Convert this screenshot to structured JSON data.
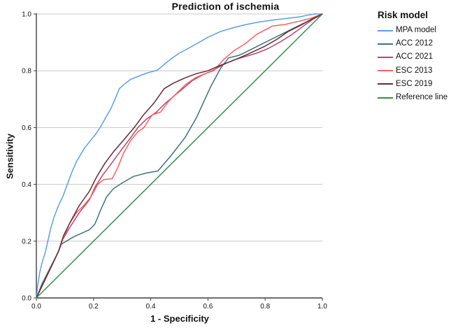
{
  "title": "Prediction of ischemia",
  "axes": {
    "x_label": "1 - Specificity",
    "y_label": "Sensitivity",
    "x_ticks": [
      "0.0",
      "0.2",
      "0.4",
      "0.6",
      "0.8",
      "1.0"
    ],
    "y_ticks": [
      "0.0",
      "0.2",
      "0.4",
      "0.6",
      "0.8",
      "1.0"
    ]
  },
  "legend": {
    "title": "Risk model"
  },
  "colors": {
    "grid": "#c8c8c8",
    "axis": "#3f3f3f",
    "text": "#111111"
  },
  "chart_data": {
    "type": "line",
    "title": "Prediction of ischemia",
    "xlabel": "1 - Specificity",
    "ylabel": "Sensitivity",
    "xlim": [
      0,
      1
    ],
    "ylim": [
      0,
      1
    ],
    "grid": "horizontal-only",
    "legend_position": "right",
    "legend_title": "Risk model",
    "series": [
      {
        "name": "MPA model",
        "color": "#5b9fe3",
        "points": [
          [
            0,
            0
          ],
          [
            0.005,
            0.045
          ],
          [
            0.012,
            0.09
          ],
          [
            0.02,
            0.125
          ],
          [
            0.032,
            0.163
          ],
          [
            0.04,
            0.2
          ],
          [
            0.05,
            0.245
          ],
          [
            0.062,
            0.285
          ],
          [
            0.075,
            0.32
          ],
          [
            0.094,
            0.36
          ],
          [
            0.11,
            0.405
          ],
          [
            0.125,
            0.445
          ],
          [
            0.14,
            0.48
          ],
          [
            0.155,
            0.505
          ],
          [
            0.17,
            0.53
          ],
          [
            0.19,
            0.555
          ],
          [
            0.21,
            0.58
          ],
          [
            0.227,
            0.607
          ],
          [
            0.245,
            0.64
          ],
          [
            0.26,
            0.665
          ],
          [
            0.275,
            0.7
          ],
          [
            0.29,
            0.737
          ],
          [
            0.31,
            0.755
          ],
          [
            0.33,
            0.77
          ],
          [
            0.36,
            0.782
          ],
          [
            0.39,
            0.793
          ],
          [
            0.423,
            0.802
          ],
          [
            0.45,
            0.825
          ],
          [
            0.475,
            0.845
          ],
          [
            0.5,
            0.862
          ],
          [
            0.53,
            0.878
          ],
          [
            0.56,
            0.895
          ],
          [
            0.6,
            0.918
          ],
          [
            0.643,
            0.938
          ],
          [
            0.69,
            0.952
          ],
          [
            0.73,
            0.962
          ],
          [
            0.78,
            0.972
          ],
          [
            0.83,
            0.979
          ],
          [
            0.88,
            0.985
          ],
          [
            0.92,
            0.99
          ],
          [
            0.955,
            0.997
          ],
          [
            0.975,
            1
          ],
          [
            1,
            1
          ]
        ]
      },
      {
        "name": "ACC 2012",
        "color": "#3e7476",
        "points": [
          [
            0,
            0
          ],
          [
            0.02,
            0.05
          ],
          [
            0.077,
            0.163
          ],
          [
            0.088,
            0.19
          ],
          [
            0.105,
            0.2
          ],
          [
            0.13,
            0.215
          ],
          [
            0.185,
            0.24
          ],
          [
            0.205,
            0.26
          ],
          [
            0.225,
            0.31
          ],
          [
            0.245,
            0.355
          ],
          [
            0.27,
            0.385
          ],
          [
            0.3,
            0.405
          ],
          [
            0.34,
            0.428
          ],
          [
            0.385,
            0.44
          ],
          [
            0.425,
            0.447
          ],
          [
            0.47,
            0.5
          ],
          [
            0.52,
            0.565
          ],
          [
            0.56,
            0.635
          ],
          [
            0.61,
            0.745
          ],
          [
            0.645,
            0.81
          ],
          [
            0.672,
            0.845
          ],
          [
            0.71,
            0.855
          ],
          [
            0.75,
            0.875
          ],
          [
            0.8,
            0.9
          ],
          [
            0.85,
            0.925
          ],
          [
            0.89,
            0.945
          ],
          [
            0.93,
            0.965
          ],
          [
            1,
            1
          ]
        ]
      },
      {
        "name": "ACC 2021",
        "color": "#b84372",
        "points": [
          [
            0,
            0
          ],
          [
            0.077,
            0.163
          ],
          [
            0.092,
            0.205
          ],
          [
            0.115,
            0.245
          ],
          [
            0.15,
            0.3
          ],
          [
            0.185,
            0.345
          ],
          [
            0.205,
            0.39
          ],
          [
            0.23,
            0.43
          ],
          [
            0.26,
            0.47
          ],
          [
            0.3,
            0.525
          ],
          [
            0.33,
            0.565
          ],
          [
            0.355,
            0.6
          ],
          [
            0.385,
            0.63
          ],
          [
            0.42,
            0.655
          ],
          [
            0.45,
            0.685
          ],
          [
            0.48,
            0.71
          ],
          [
            0.51,
            0.735
          ],
          [
            0.545,
            0.765
          ],
          [
            0.58,
            0.785
          ],
          [
            0.615,
            0.8
          ],
          [
            0.65,
            0.82
          ],
          [
            0.69,
            0.838
          ],
          [
            0.73,
            0.85
          ],
          [
            0.77,
            0.862
          ],
          [
            0.81,
            0.878
          ],
          [
            0.85,
            0.9
          ],
          [
            0.89,
            0.925
          ],
          [
            0.93,
            0.955
          ],
          [
            0.965,
            0.98
          ],
          [
            1,
            1
          ]
        ]
      },
      {
        "name": "ESC 2013",
        "color": "#f96060",
        "points": [
          [
            0,
            0
          ],
          [
            0.077,
            0.163
          ],
          [
            0.09,
            0.2
          ],
          [
            0.115,
            0.26
          ],
          [
            0.14,
            0.3
          ],
          [
            0.165,
            0.325
          ],
          [
            0.19,
            0.355
          ],
          [
            0.215,
            0.4
          ],
          [
            0.235,
            0.417
          ],
          [
            0.265,
            0.42
          ],
          [
            0.285,
            0.46
          ],
          [
            0.305,
            0.51
          ],
          [
            0.33,
            0.555
          ],
          [
            0.355,
            0.585
          ],
          [
            0.376,
            0.6
          ],
          [
            0.405,
            0.645
          ],
          [
            0.435,
            0.655
          ],
          [
            0.46,
            0.69
          ],
          [
            0.49,
            0.72
          ],
          [
            0.52,
            0.75
          ],
          [
            0.555,
            0.775
          ],
          [
            0.59,
            0.79
          ],
          [
            0.62,
            0.8
          ],
          [
            0.655,
            0.84
          ],
          [
            0.69,
            0.87
          ],
          [
            0.73,
            0.895
          ],
          [
            0.77,
            0.928
          ],
          [
            0.826,
            0.958
          ],
          [
            0.87,
            0.963
          ],
          [
            0.92,
            0.975
          ],
          [
            0.96,
            0.985
          ],
          [
            1,
            1
          ]
        ]
      },
      {
        "name": "ESC 2019",
        "color": "#642b33",
        "points": [
          [
            0,
            0
          ],
          [
            0.077,
            0.163
          ],
          [
            0.095,
            0.22
          ],
          [
            0.12,
            0.27
          ],
          [
            0.15,
            0.325
          ],
          [
            0.185,
            0.375
          ],
          [
            0.21,
            0.425
          ],
          [
            0.24,
            0.475
          ],
          [
            0.27,
            0.515
          ],
          [
            0.3,
            0.55
          ],
          [
            0.342,
            0.6
          ],
          [
            0.375,
            0.645
          ],
          [
            0.41,
            0.685
          ],
          [
            0.447,
            0.737
          ],
          [
            0.48,
            0.757
          ],
          [
            0.52,
            0.775
          ],
          [
            0.56,
            0.79
          ],
          [
            0.6,
            0.8
          ],
          [
            0.64,
            0.818
          ],
          [
            0.68,
            0.833
          ],
          [
            0.72,
            0.85
          ],
          [
            0.76,
            0.868
          ],
          [
            0.8,
            0.887
          ],
          [
            0.84,
            0.91
          ],
          [
            0.88,
            0.938
          ],
          [
            0.92,
            0.958
          ],
          [
            0.96,
            0.98
          ],
          [
            1,
            1
          ]
        ]
      },
      {
        "name": "Reference line",
        "color": "#33904a",
        "points": [
          [
            0,
            0
          ],
          [
            1,
            1
          ]
        ]
      }
    ]
  }
}
